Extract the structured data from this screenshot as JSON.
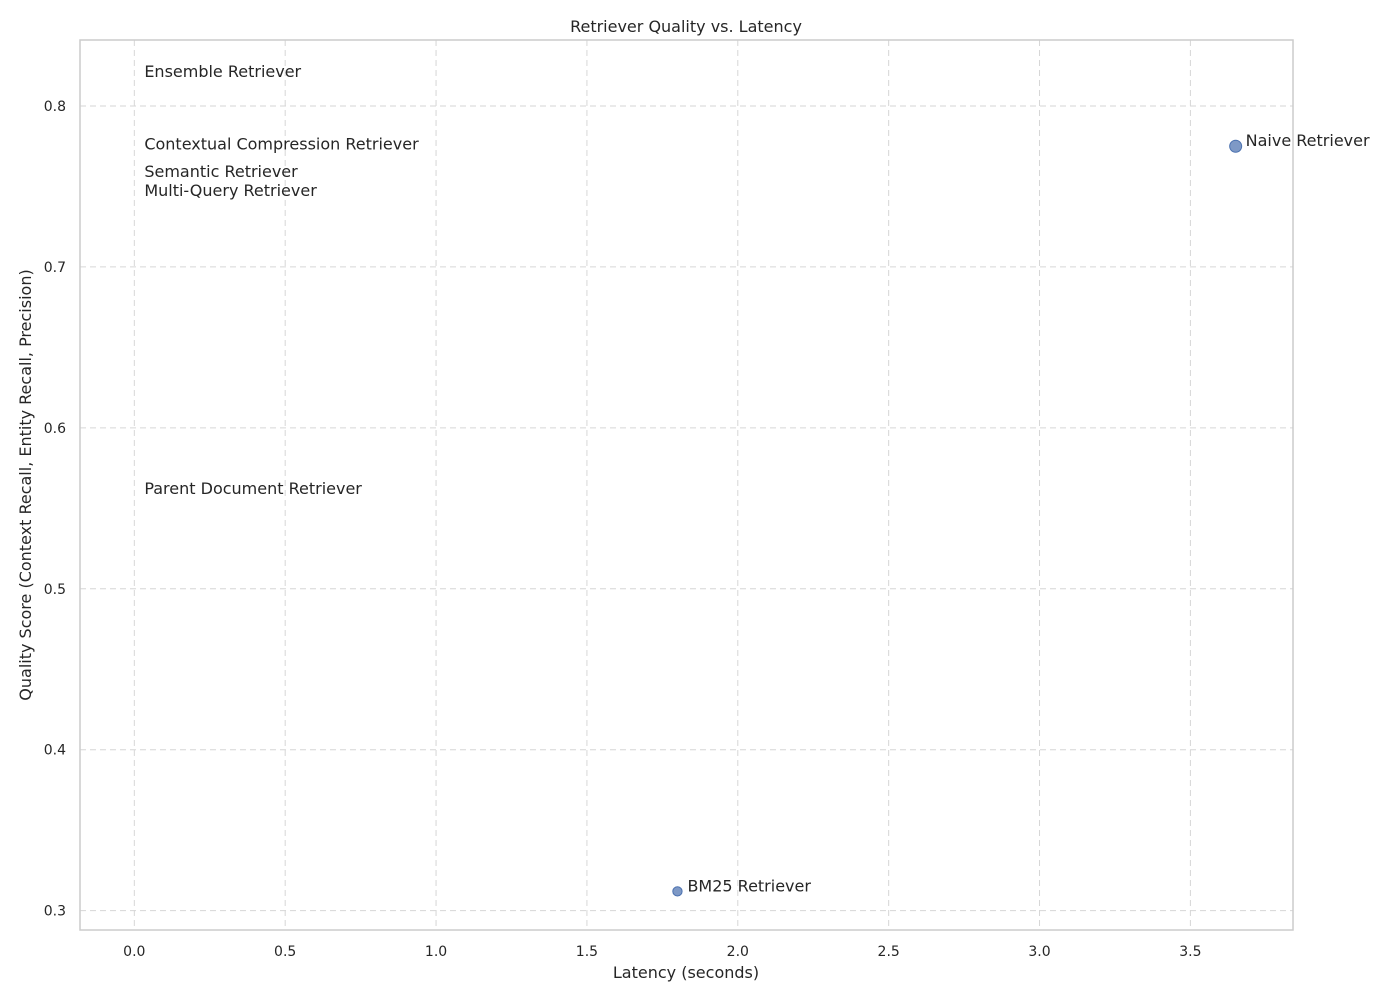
{
  "chart_data": {
    "type": "scatter",
    "title": "Retriever Quality vs. Latency",
    "xlabel": "Latency (seconds)",
    "ylabel": "Quality Score (Context Recall, Entity Recall, Precision)",
    "xlim": [
      -0.18,
      3.84
    ],
    "ylim": [
      0.288,
      0.841
    ],
    "x_ticks": [
      0.0,
      0.5,
      1.0,
      1.5,
      2.0,
      2.5,
      3.0,
      3.5
    ],
    "x_tick_labels": [
      "0.0",
      "0.5",
      "1.0",
      "1.5",
      "2.0",
      "2.5",
      "3.0",
      "3.5"
    ],
    "y_ticks": [
      0.3,
      0.4,
      0.5,
      0.6,
      0.7,
      0.8
    ],
    "y_tick_labels": [
      "0.3",
      "0.4",
      "0.5",
      "0.6",
      "0.7",
      "0.8"
    ],
    "grid": true,
    "marker_color": "#4c72b0",
    "points": [
      {
        "label": "Naive Retriever",
        "x": 3.65,
        "y": 0.775,
        "size": 1.0
      },
      {
        "label": "BM25 Retriever",
        "x": 1.8,
        "y": 0.312,
        "size": 0.55
      },
      {
        "label": "Ensemble Retriever",
        "x": 0.0,
        "y": 0.818,
        "size": 0
      },
      {
        "label": "Contextual Compression Retriever",
        "x": 0.0,
        "y": 0.773,
        "size": 0
      },
      {
        "label": "Semantic Retriever",
        "x": 0.0,
        "y": 0.756,
        "size": 0
      },
      {
        "label": "Multi-Query Retriever",
        "x": 0.0,
        "y": 0.744,
        "size": 0
      },
      {
        "label": "Parent Document Retriever",
        "x": 0.0,
        "y": 0.559,
        "size": 0
      }
    ]
  }
}
